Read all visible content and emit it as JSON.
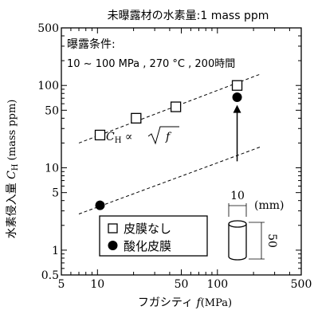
{
  "chart_data": {
    "type": "scatter",
    "title": "未曝露材の水素量:1 mass ppm",
    "xlabel": {
      "main": "フガシティ",
      "sym": "f",
      "unit": "(MPa)"
    },
    "ylabel": {
      "main": "水素侵入量",
      "sym": "C",
      "sub": "H",
      "unit": "(mass ppm)"
    },
    "x_scale": "log",
    "y_scale": "log",
    "xlim": [
      5,
      500
    ],
    "ylim": [
      0.5,
      500
    ],
    "x_ticks": [
      {
        "v": 5,
        "label": "5"
      },
      {
        "v": 10,
        "label": "10"
      },
      {
        "v": 50,
        "label": "50"
      },
      {
        "v": 100,
        "label": "100"
      },
      {
        "v": 500,
        "label": "500"
      }
    ],
    "y_ticks": [
      {
        "v": 0.5,
        "label": "0.5"
      },
      {
        "v": 1,
        "label": "1"
      },
      {
        "v": 5,
        "label": "5"
      },
      {
        "v": 10,
        "label": "10"
      },
      {
        "v": 50,
        "label": "50"
      },
      {
        "v": 100,
        "label": "100"
      },
      {
        "v": 500,
        "label": "500"
      }
    ],
    "series": [
      {
        "name": "皮膜なし",
        "marker": "open-square",
        "points": [
          [
            10.5,
            25
          ],
          [
            21,
            40
          ],
          [
            45,
            55
          ],
          [
            146,
            100
          ]
        ]
      },
      {
        "name": "酸化皮膜",
        "marker": "filled-circle",
        "points": [
          [
            10.5,
            3.5
          ],
          [
            146,
            72
          ]
        ]
      }
    ],
    "fit_lines": [
      {
        "x": [
          7,
          230
        ],
        "y": [
          20,
          138
        ]
      },
      {
        "x": [
          7,
          230
        ],
        "y": [
          2.75,
          18
        ]
      }
    ],
    "annotations": {
      "conditions_title": "曝露条件:",
      "conditions_text": "10 ~ 100 MPa , 270 °C , 200時間",
      "relation": {
        "lhs": "C",
        "sub": "H",
        "op": "∝",
        "rad": "f"
      },
      "arrow": {
        "from": [
          146,
          12
        ],
        "to": [
          146,
          58
        ]
      }
    },
    "specimen": {
      "diameter": "10",
      "unit": "(mm)",
      "length": "50"
    }
  }
}
